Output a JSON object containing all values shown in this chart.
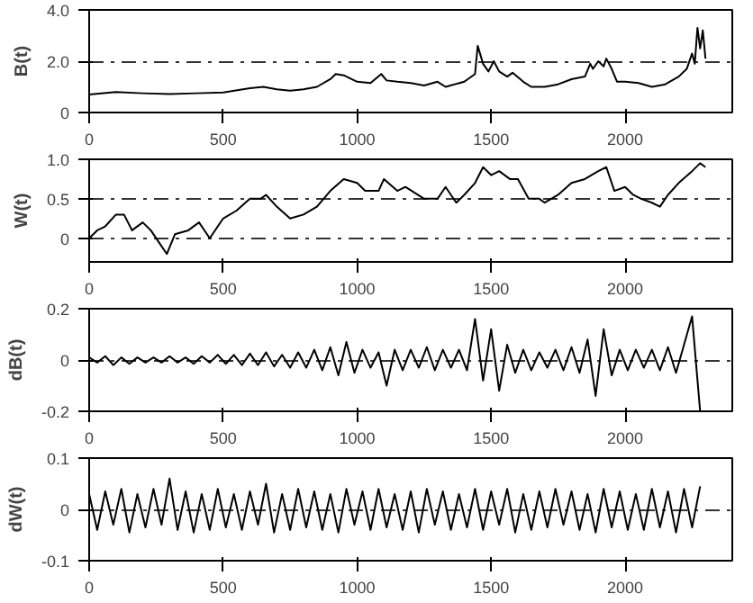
{
  "chart_data": [
    {
      "type": "line",
      "ylabel": "B(t)",
      "xlim": [
        0,
        2400
      ],
      "ylim": [
        0,
        4
      ],
      "xticks": [
        0,
        500,
        1000,
        1500,
        2000
      ],
      "yticks": [
        0,
        {
          "value": 2,
          "label": "2.0"
        },
        {
          "value": 4,
          "label": "4.0"
        }
      ],
      "grid": "y",
      "x": [
        0,
        100,
        200,
        300,
        400,
        500,
        600,
        650,
        700,
        750,
        800,
        850,
        900,
        920,
        950,
        1000,
        1050,
        1090,
        1110,
        1150,
        1200,
        1250,
        1300,
        1330,
        1400,
        1440,
        1450,
        1470,
        1490,
        1510,
        1530,
        1560,
        1580,
        1620,
        1650,
        1700,
        1750,
        1800,
        1850,
        1870,
        1880,
        1900,
        1920,
        1930,
        1950,
        1970,
        2000,
        2050,
        2100,
        2150,
        2200,
        2230,
        2250,
        2260,
        2270,
        2280,
        2290,
        2300
      ],
      "series": [
        {
          "color": "#000000",
          "values": [
            0.7,
            0.8,
            0.75,
            0.72,
            0.75,
            0.78,
            0.95,
            1.0,
            0.9,
            0.85,
            0.9,
            1.0,
            1.3,
            1.5,
            1.45,
            1.2,
            1.15,
            1.5,
            1.25,
            1.2,
            1.15,
            1.05,
            1.2,
            1.0,
            1.2,
            1.5,
            2.6,
            1.9,
            1.6,
            2.0,
            1.6,
            1.4,
            1.55,
            1.2,
            1.0,
            1.0,
            1.1,
            1.3,
            1.4,
            1.9,
            1.7,
            2.0,
            1.8,
            2.1,
            1.7,
            1.2,
            1.2,
            1.15,
            1.0,
            1.1,
            1.4,
            1.7,
            2.3,
            1.9,
            3.3,
            2.5,
            3.2,
            2.1
          ]
        }
      ]
    },
    {
      "type": "line",
      "ylabel": "W(t)",
      "xlim": [
        0,
        2400
      ],
      "ylim": [
        -0.3,
        1.0
      ],
      "xticks": [
        0,
        500,
        1000,
        1500,
        2000
      ],
      "yticks": [
        0,
        0.5,
        {
          "value": 1,
          "label": "1.0"
        }
      ],
      "grid": "y",
      "x": [
        0,
        30,
        60,
        100,
        130,
        160,
        200,
        230,
        260,
        290,
        320,
        370,
        410,
        450,
        500,
        550,
        600,
        640,
        660,
        700,
        750,
        800,
        850,
        900,
        950,
        1000,
        1030,
        1080,
        1100,
        1150,
        1180,
        1250,
        1300,
        1330,
        1370,
        1400,
        1440,
        1470,
        1500,
        1530,
        1570,
        1600,
        1640,
        1680,
        1700,
        1750,
        1800,
        1850,
        1900,
        1930,
        1960,
        2000,
        2030,
        2060,
        2100,
        2130,
        2160,
        2200,
        2250,
        2280,
        2300
      ],
      "series": [
        {
          "color": "#000000",
          "values": [
            0,
            0.1,
            0.15,
            0.3,
            0.3,
            0.1,
            0.2,
            0.1,
            -0.05,
            -0.2,
            0.05,
            0.1,
            0.2,
            0.0,
            0.25,
            0.35,
            0.5,
            0.5,
            0.55,
            0.4,
            0.25,
            0.3,
            0.4,
            0.6,
            0.75,
            0.7,
            0.6,
            0.6,
            0.75,
            0.6,
            0.65,
            0.5,
            0.5,
            0.65,
            0.45,
            0.55,
            0.7,
            0.9,
            0.8,
            0.85,
            0.75,
            0.75,
            0.5,
            0.5,
            0.45,
            0.55,
            0.7,
            0.75,
            0.85,
            0.9,
            0.6,
            0.65,
            0.55,
            0.5,
            0.45,
            0.4,
            0.55,
            0.7,
            0.85,
            0.95,
            0.9
          ]
        }
      ]
    },
    {
      "type": "line",
      "ylabel": "dB(t)",
      "xlim": [
        0,
        2400
      ],
      "ylim": [
        -0.2,
        0.2
      ],
      "xticks": [
        0,
        500,
        1000,
        1500,
        2000
      ],
      "yticks": [
        -0.2,
        0,
        0.2
      ],
      "grid": "y",
      "x": [
        0,
        30,
        60,
        90,
        120,
        150,
        180,
        210,
        240,
        270,
        300,
        330,
        360,
        390,
        420,
        450,
        480,
        510,
        540,
        570,
        600,
        630,
        660,
        690,
        720,
        750,
        780,
        810,
        840,
        870,
        900,
        930,
        960,
        990,
        1020,
        1050,
        1080,
        1110,
        1140,
        1170,
        1200,
        1230,
        1260,
        1290,
        1320,
        1350,
        1380,
        1410,
        1440,
        1470,
        1500,
        1530,
        1560,
        1590,
        1620,
        1650,
        1680,
        1710,
        1740,
        1770,
        1800,
        1830,
        1860,
        1890,
        1920,
        1950,
        1980,
        2010,
        2040,
        2070,
        2100,
        2130,
        2160,
        2190,
        2220,
        2250,
        2280
      ],
      "series": [
        {
          "color": "#000000",
          "values": [
            0.01,
            -0.01,
            0.015,
            -0.02,
            0.01,
            -0.015,
            0.01,
            -0.01,
            0.01,
            -0.01,
            0.015,
            -0.01,
            0.01,
            -0.015,
            0.015,
            -0.01,
            0.02,
            -0.015,
            0.02,
            -0.02,
            0.025,
            -0.02,
            0.03,
            -0.025,
            0.02,
            -0.03,
            0.03,
            -0.03,
            0.04,
            -0.04,
            0.05,
            -0.06,
            0.07,
            -0.05,
            0.04,
            -0.03,
            0.03,
            -0.1,
            0.04,
            -0.04,
            0.04,
            -0.03,
            0.05,
            -0.04,
            0.04,
            -0.03,
            0.04,
            -0.04,
            0.16,
            -0.08,
            0.12,
            -0.12,
            0.06,
            -0.05,
            0.04,
            -0.04,
            0.03,
            -0.03,
            0.04,
            -0.04,
            0.05,
            -0.05,
            0.08,
            -0.14,
            0.12,
            -0.06,
            0.04,
            -0.04,
            0.04,
            -0.03,
            0.04,
            -0.04,
            0.05,
            -0.05,
            0.06,
            0.17,
            -0.2
          ]
        }
      ]
    },
    {
      "type": "line",
      "ylabel": "dW(t)",
      "xlim": [
        0,
        2400
      ],
      "ylim": [
        -0.1,
        0.1
      ],
      "xticks": [
        0,
        500,
        1000,
        1500,
        2000
      ],
      "yticks": [
        -0.1,
        0,
        0.1
      ],
      "grid": "y",
      "x": [
        0,
        30,
        60,
        90,
        120,
        150,
        180,
        210,
        240,
        270,
        300,
        330,
        360,
        390,
        420,
        450,
        480,
        510,
        540,
        570,
        600,
        630,
        660,
        690,
        720,
        750,
        780,
        810,
        840,
        870,
        900,
        930,
        960,
        990,
        1020,
        1050,
        1080,
        1110,
        1140,
        1170,
        1200,
        1230,
        1260,
        1290,
        1320,
        1350,
        1380,
        1410,
        1440,
        1470,
        1500,
        1530,
        1560,
        1590,
        1620,
        1650,
        1680,
        1710,
        1740,
        1770,
        1800,
        1830,
        1860,
        1890,
        1920,
        1950,
        1980,
        2010,
        2040,
        2070,
        2100,
        2130,
        2160,
        2190,
        2220,
        2250,
        2280
      ],
      "series": [
        {
          "color": "#000000",
          "values": [
            0.03,
            -0.04,
            0.035,
            -0.03,
            0.04,
            -0.045,
            0.03,
            -0.035,
            0.04,
            -0.03,
            0.06,
            -0.04,
            0.035,
            -0.045,
            0.03,
            -0.04,
            0.04,
            -0.035,
            0.03,
            -0.04,
            0.035,
            -0.03,
            0.05,
            -0.045,
            0.03,
            -0.04,
            0.04,
            -0.035,
            0.035,
            -0.04,
            0.03,
            -0.045,
            0.04,
            -0.03,
            0.035,
            -0.04,
            0.04,
            -0.035,
            0.03,
            -0.04,
            0.035,
            -0.045,
            0.04,
            -0.03,
            0.035,
            -0.04,
            0.03,
            -0.035,
            0.04,
            -0.04,
            0.035,
            -0.03,
            0.04,
            -0.045,
            0.03,
            -0.04,
            0.035,
            -0.035,
            0.04,
            -0.03,
            0.035,
            -0.04,
            0.03,
            -0.045,
            0.04,
            -0.035,
            0.035,
            -0.04,
            0.03,
            -0.04,
            0.04,
            -0.035,
            0.035,
            -0.045,
            0.04,
            -0.035,
            0.045
          ]
        }
      ]
    }
  ]
}
